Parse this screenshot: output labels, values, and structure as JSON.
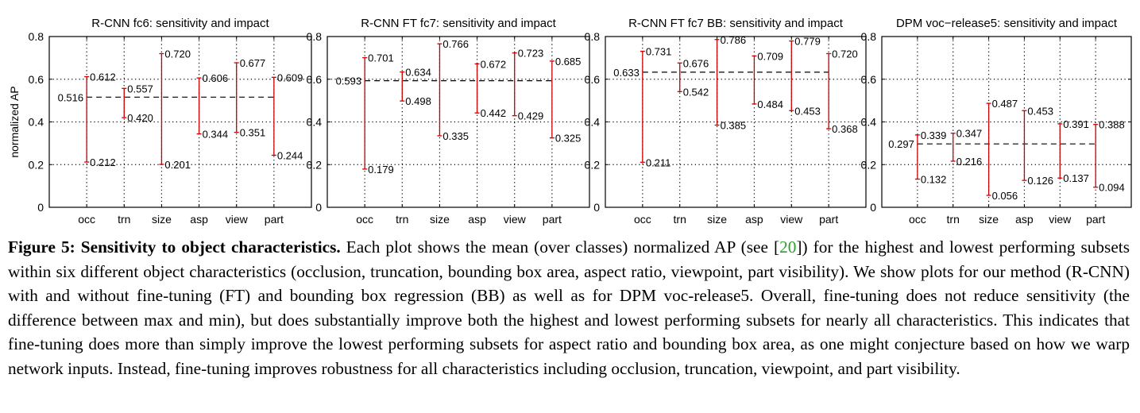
{
  "chart_data": [
    {
      "type": "errorbar",
      "title": "R-CNN fc6: sensitivity and impact",
      "ylabel": "normalized AP",
      "ylim": [
        0,
        0.8
      ],
      "yticks": [
        "0",
        "0.2",
        "0.4",
        "0.6",
        "0.8"
      ],
      "categories": [
        "occ",
        "trn",
        "size",
        "asp",
        "view",
        "part"
      ],
      "mean": 0.516,
      "mean_label": "0.516",
      "max": [
        0.612,
        0.557,
        0.72,
        0.606,
        0.677,
        0.609
      ],
      "min": [
        0.212,
        0.42,
        0.201,
        0.344,
        0.351,
        0.244
      ],
      "max_labels": [
        "0.612",
        "0.557",
        "0.720",
        "0.606",
        "0.677",
        "0.609"
      ],
      "min_labels": [
        "0.212",
        "0.420",
        "0.201",
        "0.344",
        "0.351",
        "0.244"
      ],
      "grid": true
    },
    {
      "type": "errorbar",
      "title": "R-CNN FT fc7: sensitivity and impact",
      "ylabel": "",
      "ylim": [
        0,
        0.8
      ],
      "yticks": [
        "0",
        "0.2",
        "0.4",
        "0.6",
        "0.8"
      ],
      "categories": [
        "occ",
        "trn",
        "size",
        "asp",
        "view",
        "part"
      ],
      "mean": 0.593,
      "mean_label": "0.593",
      "max": [
        0.701,
        0.634,
        0.766,
        0.672,
        0.723,
        0.685
      ],
      "min": [
        0.179,
        0.498,
        0.335,
        0.442,
        0.429,
        0.325
      ],
      "max_labels": [
        "0.701",
        "0.634",
        "0.766",
        "0.672",
        "0.723",
        "0.685"
      ],
      "min_labels": [
        "0.179",
        "0.498",
        "0.335",
        "0.442",
        "0.429",
        "0.325"
      ],
      "grid": true
    },
    {
      "type": "errorbar",
      "title": "R-CNN FT fc7 BB: sensitivity and impact",
      "ylabel": "",
      "ylim": [
        0,
        0.8
      ],
      "yticks": [
        "0",
        "0.2",
        "0.4",
        "0.6",
        "0.8"
      ],
      "categories": [
        "occ",
        "trn",
        "size",
        "asp",
        "view",
        "part"
      ],
      "mean": 0.633,
      "mean_label": "0.633",
      "max": [
        0.731,
        0.676,
        0.786,
        0.709,
        0.779,
        0.72
      ],
      "min": [
        0.211,
        0.542,
        0.385,
        0.484,
        0.453,
        0.368
      ],
      "max_labels": [
        "0.731",
        "0.676",
        "0.786",
        "0.709",
        "0.779",
        "0.720"
      ],
      "min_labels": [
        "0.211",
        "0.542",
        "0.385",
        "0.484",
        "0.453",
        "0.368"
      ],
      "grid": true
    },
    {
      "type": "errorbar",
      "title": "DPM voc−release5: sensitivity and impact",
      "ylabel": "",
      "ylim": [
        0,
        0.8
      ],
      "yticks": [
        "0",
        "0.2",
        "0.4",
        "0.6",
        "0.8"
      ],
      "categories": [
        "occ",
        "trn",
        "size",
        "asp",
        "view",
        "part"
      ],
      "mean": 0.297,
      "mean_label": "0.297",
      "max": [
        0.339,
        0.347,
        0.487,
        0.453,
        0.391,
        0.388
      ],
      "min": [
        0.132,
        0.216,
        0.056,
        0.126,
        0.137,
        0.094
      ],
      "max_labels": [
        "0.339",
        "0.347",
        "0.487",
        "0.453",
        "0.391",
        "0.388"
      ],
      "min_labels": [
        "0.132",
        "0.216",
        "0.056",
        "0.126",
        "0.137",
        "0.094"
      ],
      "grid": true
    }
  ],
  "colors": {
    "range": "#cc0000",
    "mean_line": "#000000",
    "grid": "#000000",
    "ref_link": "#2ca02c"
  },
  "caption": {
    "label": "Figure 5: Sensitivity to object characteristics.",
    "text_before_ref": " Each plot shows the mean (over classes) normalized AP (see [",
    "ref": "20",
    "text_after_ref": "]) for the highest and lowest performing subsets within six different object characteristics (occlusion, truncation, bounding box area, aspect ratio, viewpoint, part visibility). We show plots for our method (R-CNN) with and without fine-tuning (FT) and bounding box regression (BB) as well as for DPM voc-release5. Overall, fine-tuning does not reduce sensitivity (the difference between max and min), but does substantially improve both the highest and lowest performing subsets for nearly all characteristics. This indicates that fine-tuning does more than simply improve the lowest performing subsets for aspect ratio and bounding box area, as one might conjecture based on how we warp network inputs. Instead, fine-tuning improves robustness for all characteristics including occlusion, truncation, viewpoint, and part visibility."
  }
}
